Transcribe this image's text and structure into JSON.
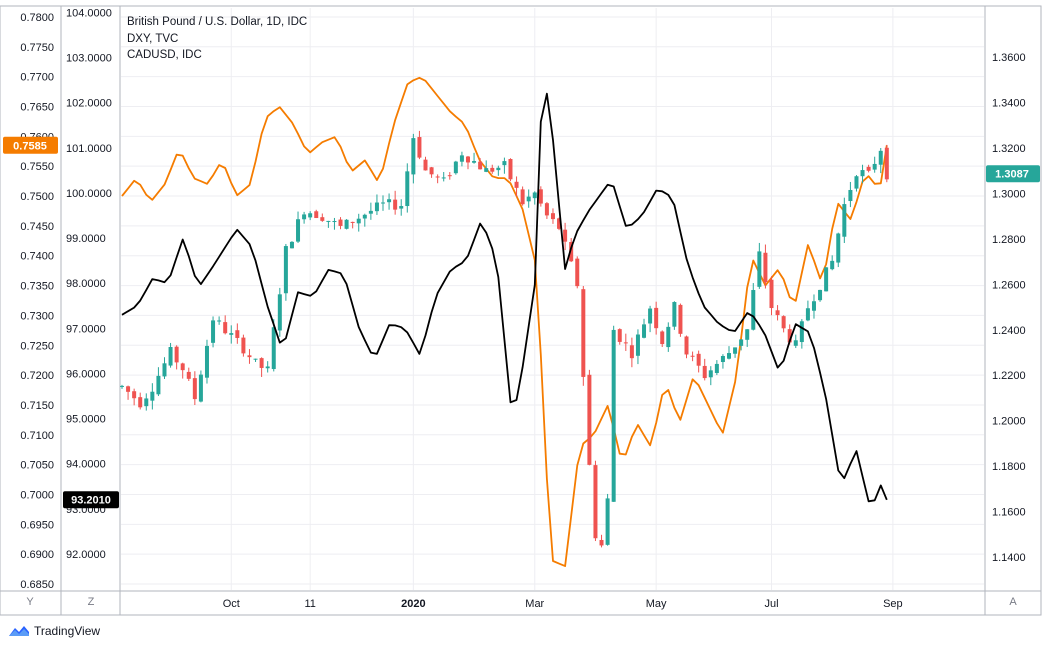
{
  "legend": {
    "main": "British Pound / U.S. Dollar, 1D, IDC",
    "second": "DXY, TVC",
    "third": "CADUSD, IDC"
  },
  "brand": "TradingView",
  "axis_buttons": {
    "left_outer": "Y",
    "left_inner": "Z",
    "right": "A"
  },
  "colors": {
    "up": "#26a69a",
    "down": "#ef5350",
    "dxy": "#000000",
    "cadusd": "#f57c00",
    "grid": "#eeeef2",
    "border": "#b2b5be",
    "text": "#131722"
  },
  "chart_data": {
    "type": "candlestick+line",
    "x_tick_labels": [
      "Oct",
      "11",
      "2020",
      "Mar",
      "May",
      "Jul",
      "Sep"
    ],
    "cadusd_axis": {
      "ylim": [
        0.684,
        0.7815
      ],
      "ticks": [
        "0.7800",
        "0.7750",
        "0.7700",
        "0.7650",
        "0.7600",
        "0.7550",
        "0.7500",
        "0.7450",
        "0.7400",
        "0.7350",
        "0.7300",
        "0.7250",
        "0.7200",
        "0.7150",
        "0.7100",
        "0.7050",
        "0.7000",
        "0.6950",
        "0.6900",
        "0.6850"
      ],
      "last_value": "0.7585"
    },
    "dxy_axis": {
      "ylim": [
        91.2,
        104.1
      ],
      "ticks": [
        "104.0000",
        "103.0000",
        "102.0000",
        "101.0000",
        "100.0000",
        "99.0000",
        "98.0000",
        "97.0000",
        "96.0000",
        "95.0000",
        "94.0000",
        "93.0000",
        "92.0000"
      ],
      "last_value": "93.2010"
    },
    "gbpusd_axis": {
      "ylim": [
        1.1255,
        1.3816
      ],
      "ticks": [
        "1.3600",
        "1.3400",
        "1.3200",
        "1.3000",
        "1.2800",
        "1.2600",
        "1.2400",
        "1.2200",
        "1.2000",
        "1.1800",
        "1.1600",
        "1.1400"
      ],
      "last_value": "1.3087"
    },
    "gbpusd_series": {
      "name": "British Pound / U.S. Dollar",
      "anchors": [
        [
          0,
          1.215
        ],
        [
          3,
          1.208
        ],
        [
          5,
          1.215
        ],
        [
          8,
          1.23
        ],
        [
          10,
          1.223
        ],
        [
          12,
          1.21
        ],
        [
          15,
          1.245
        ],
        [
          20,
          1.232
        ],
        [
          22,
          1.225
        ],
        [
          24,
          1.222
        ],
        [
          27,
          1.275
        ],
        [
          30,
          1.293
        ],
        [
          33,
          1.29
        ],
        [
          36,
          1.285
        ],
        [
          40,
          1.291
        ],
        [
          43,
          1.295
        ],
        [
          46,
          1.295
        ],
        [
          48,
          1.325
        ],
        [
          50,
          1.31
        ],
        [
          53,
          1.305
        ],
        [
          56,
          1.318
        ],
        [
          60,
          1.31
        ],
        [
          63,
          1.312
        ],
        [
          66,
          1.296
        ],
        [
          68,
          1.3
        ],
        [
          70,
          1.29
        ],
        [
          72,
          1.285
        ],
        [
          75,
          1.26
        ],
        [
          77,
          1.18
        ],
        [
          78,
          1.15
        ],
        [
          79,
          1.145
        ],
        [
          80,
          1.165
        ],
        [
          81,
          1.24
        ],
        [
          84,
          1.23
        ],
        [
          87,
          1.25
        ],
        [
          89,
          1.235
        ],
        [
          91,
          1.25
        ],
        [
          93,
          1.23
        ],
        [
          96,
          1.22
        ],
        [
          100,
          1.23
        ],
        [
          103,
          1.24
        ],
        [
          105,
          1.273
        ],
        [
          107,
          1.25
        ],
        [
          109,
          1.24
        ],
        [
          111,
          1.233
        ],
        [
          113,
          1.25
        ],
        [
          115,
          1.26
        ],
        [
          117,
          1.27
        ],
        [
          119,
          1.295
        ],
        [
          121,
          1.31
        ],
        [
          123,
          1.308
        ],
        [
          125,
          1.32
        ],
        [
          126,
          1.3087
        ]
      ]
    },
    "dxy_series": {
      "name": "DXY",
      "anchors": [
        [
          0,
          97.3
        ],
        [
          2,
          97.5
        ],
        [
          4,
          98.1
        ],
        [
          6,
          98.0
        ],
        [
          8,
          99.0
        ],
        [
          10,
          97.9
        ],
        [
          12,
          98.4
        ],
        [
          15,
          99.2
        ],
        [
          17,
          98.8
        ],
        [
          19,
          97.5
        ],
        [
          21,
          96.5
        ],
        [
          23,
          97.8
        ],
        [
          25,
          97.7
        ],
        [
          27,
          98.3
        ],
        [
          29,
          98.2
        ],
        [
          31,
          97.0
        ],
        [
          33,
          96.3
        ],
        [
          35,
          97.1
        ],
        [
          37,
          97.0
        ],
        [
          39,
          96.4
        ],
        [
          41,
          97.7
        ],
        [
          43,
          98.3
        ],
        [
          45,
          98.5
        ],
        [
          47,
          99.4
        ],
        [
          49,
          98.5
        ],
        [
          51,
          95.0
        ],
        [
          52,
          95.7
        ],
        [
          54,
          98.0
        ],
        [
          55,
          102.7
        ],
        [
          56,
          101.8
        ],
        [
          58,
          98.2
        ],
        [
          59,
          99.0
        ],
        [
          61,
          99.6
        ],
        [
          64,
          100.3
        ],
        [
          66,
          99.2
        ],
        [
          68,
          99.5
        ],
        [
          70,
          100.1
        ],
        [
          72,
          99.9
        ],
        [
          74,
          98.4
        ],
        [
          76,
          97.5
        ],
        [
          78,
          97.1
        ],
        [
          80,
          96.9
        ],
        [
          82,
          97.4
        ],
        [
          84,
          96.9
        ],
        [
          86,
          96.0
        ],
        [
          88,
          97.1
        ],
        [
          90,
          96.9
        ],
        [
          92,
          95.5
        ],
        [
          94,
          93.5
        ],
        [
          96,
          94.3
        ],
        [
          98,
          92.9
        ],
        [
          99,
          93.6
        ],
        [
          100,
          93.2
        ]
      ],
      "end_index": 126
    },
    "cadusd_series": {
      "name": "CADUSD",
      "anchors": [
        [
          0,
          0.75
        ],
        [
          2,
          0.753
        ],
        [
          4,
          0.749
        ],
        [
          6,
          0.752
        ],
        [
          8,
          0.758
        ],
        [
          10,
          0.753
        ],
        [
          12,
          0.752
        ],
        [
          14,
          0.756
        ],
        [
          16,
          0.75
        ],
        [
          18,
          0.752
        ],
        [
          20,
          0.763
        ],
        [
          22,
          0.765
        ],
        [
          24,
          0.762
        ],
        [
          26,
          0.757
        ],
        [
          28,
          0.759
        ],
        [
          30,
          0.76
        ],
        [
          32,
          0.754
        ],
        [
          34,
          0.756
        ],
        [
          36,
          0.752
        ],
        [
          38,
          0.762
        ],
        [
          40,
          0.769
        ],
        [
          42,
          0.77
        ],
        [
          44,
          0.767
        ],
        [
          46,
          0.764
        ],
        [
          48,
          0.762
        ],
        [
          50,
          0.756
        ],
        [
          52,
          0.753
        ],
        [
          54,
          0.753
        ],
        [
          56,
          0.748
        ],
        [
          58,
          0.738
        ],
        [
          60,
          0.689
        ],
        [
          62,
          0.688
        ],
        [
          64,
          0.708
        ],
        [
          66,
          0.71
        ],
        [
          68,
          0.715
        ],
        [
          70,
          0.705
        ],
        [
          72,
          0.712
        ],
        [
          74,
          0.708
        ],
        [
          76,
          0.719
        ],
        [
          78,
          0.712
        ],
        [
          80,
          0.72
        ],
        [
          82,
          0.715
        ],
        [
          84,
          0.71
        ],
        [
          86,
          0.72
        ],
        [
          88,
          0.74
        ],
        [
          90,
          0.735
        ],
        [
          92,
          0.738
        ],
        [
          94,
          0.731
        ],
        [
          96,
          0.742
        ],
        [
          98,
          0.735
        ],
        [
          100,
          0.749
        ],
        [
          102,
          0.746
        ],
        [
          104,
          0.754
        ],
        [
          106,
          0.751
        ],
        [
          107,
          0.7585
        ]
      ],
      "end_index": 126
    }
  }
}
